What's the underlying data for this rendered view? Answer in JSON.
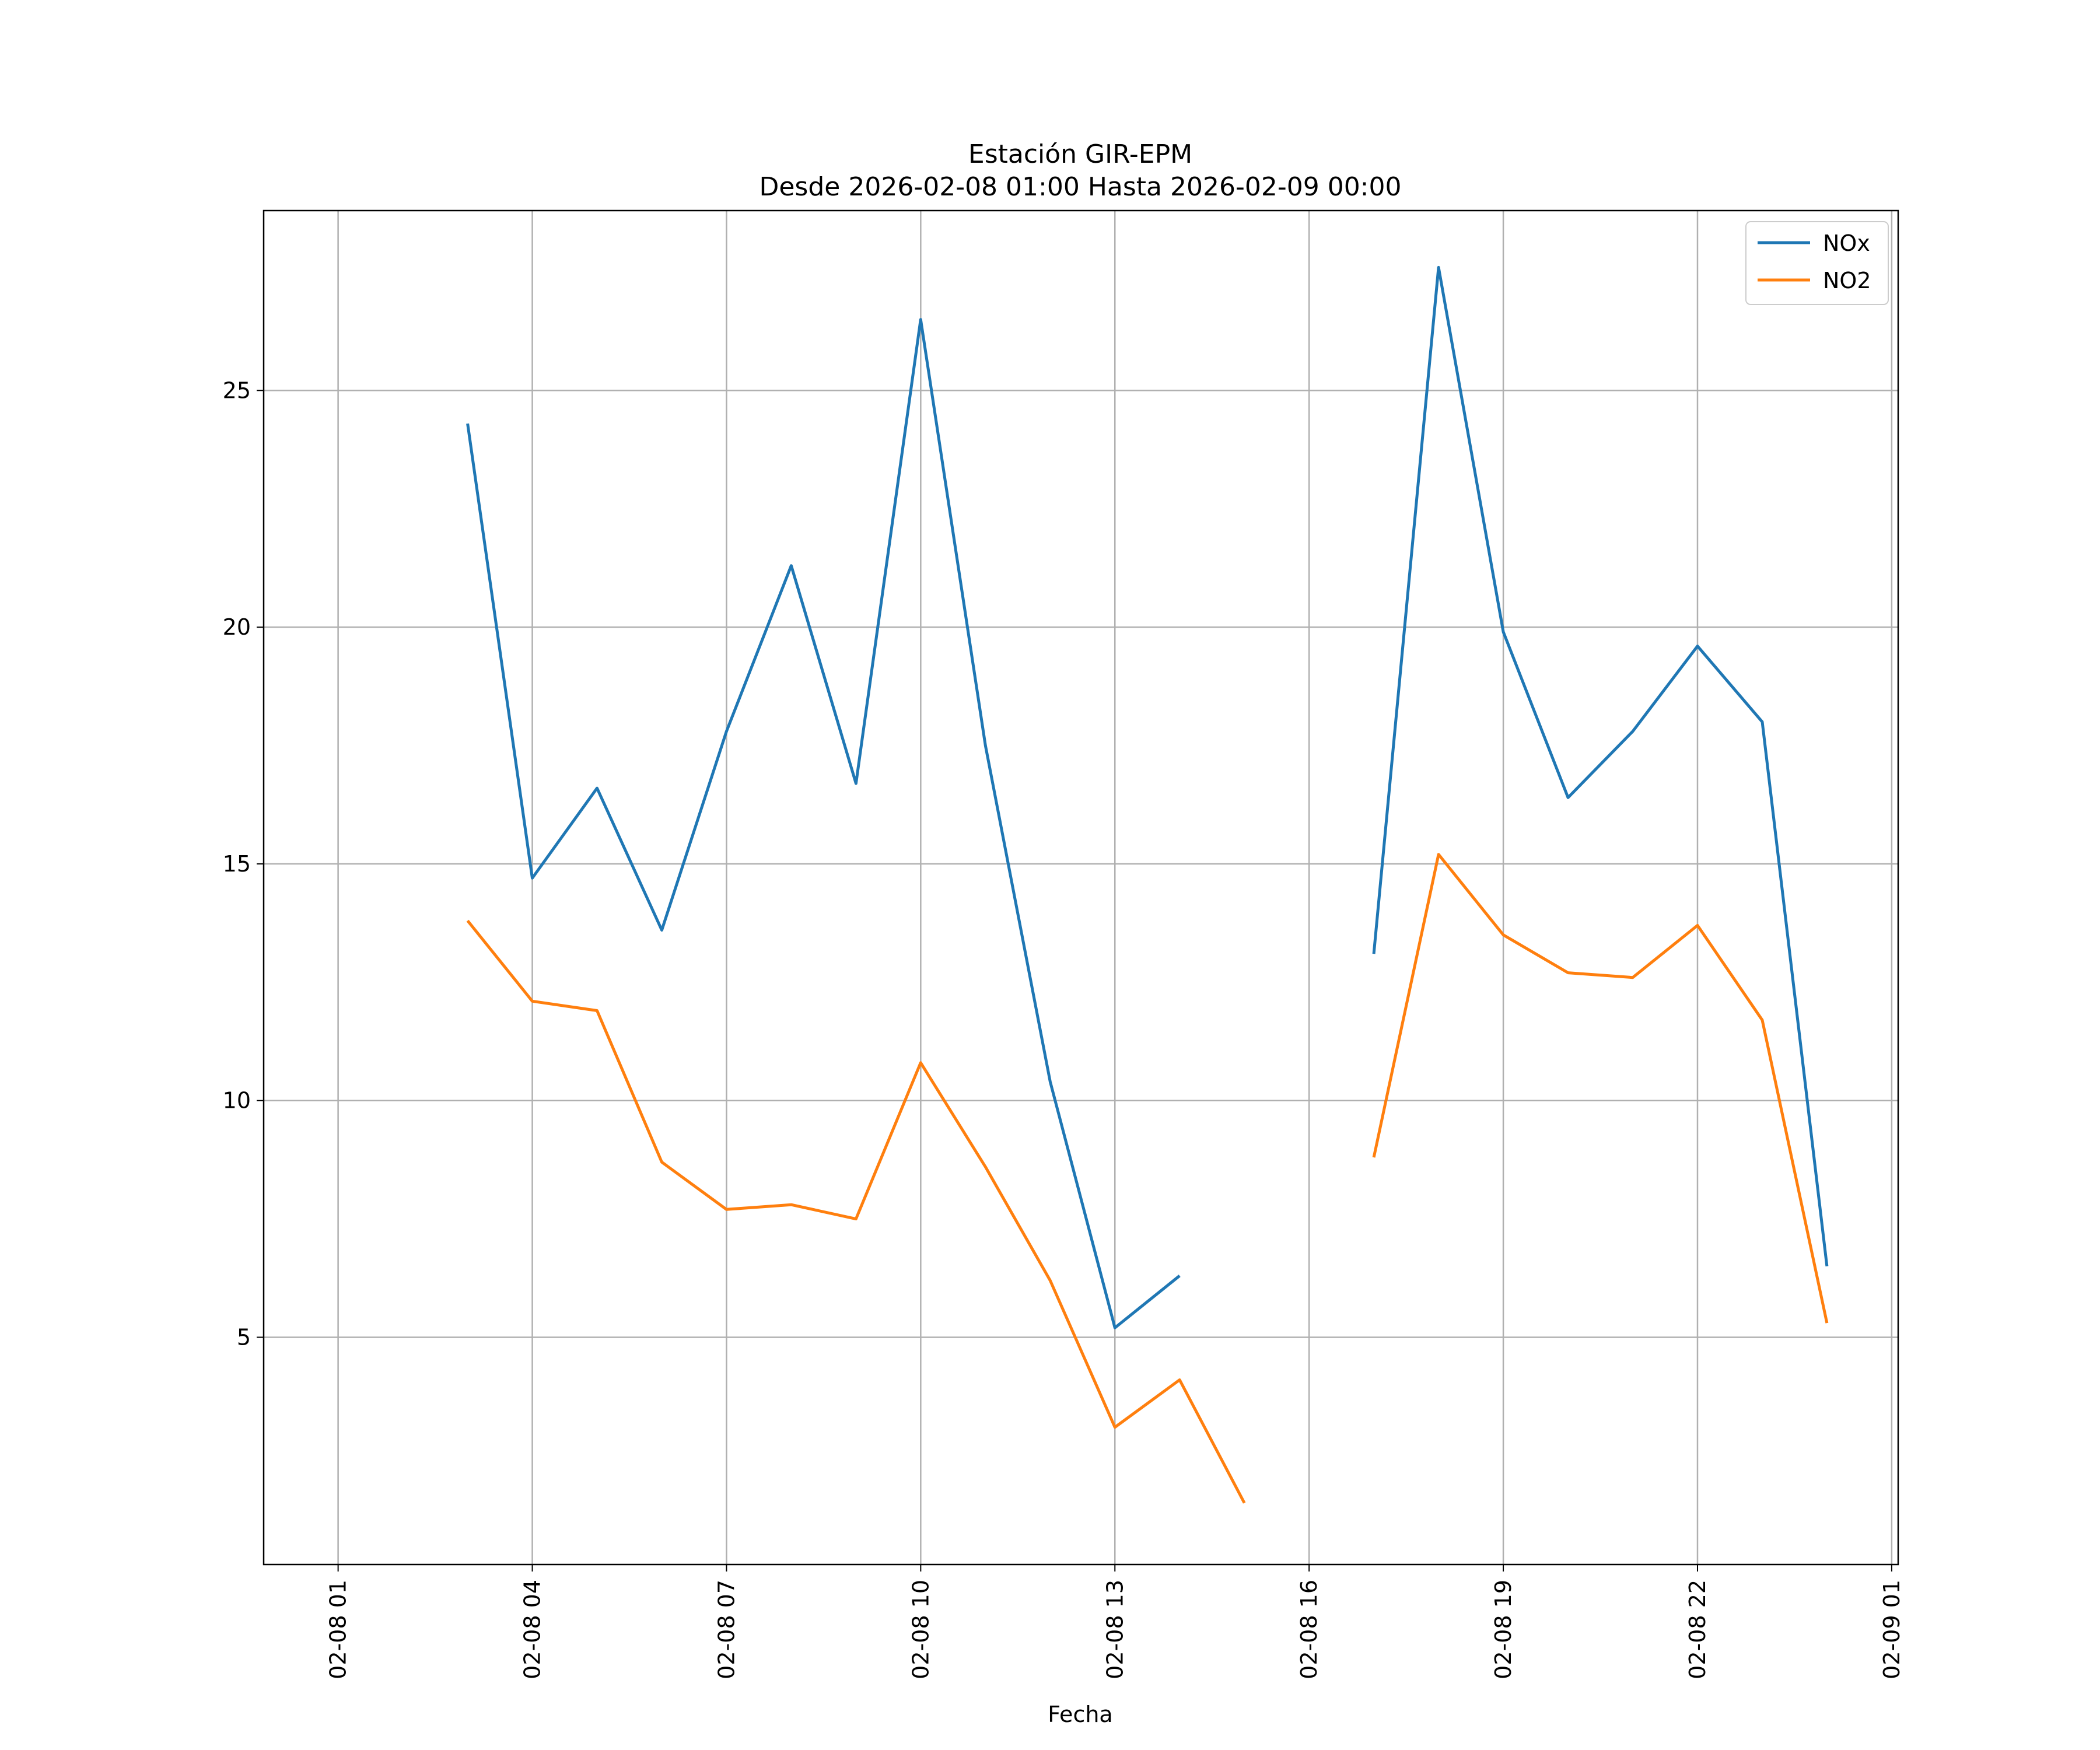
{
  "chart_data": {
    "type": "line",
    "title": "Estación GIR-EPM",
    "subtitle": "Desde 2026-02-08 01:00 Hasta 2026-02-09 00:00",
    "xlabel": "Fecha",
    "ylabel": "",
    "x_hours": [
      3,
      4,
      5,
      6,
      7,
      8,
      9,
      10,
      11,
      12,
      13,
      14,
      15,
      16,
      17,
      18,
      19,
      20,
      21,
      22,
      23,
      24
    ],
    "x_tick_hours": [
      1,
      4,
      7,
      10,
      13,
      16,
      19,
      22,
      25
    ],
    "x_tick_labels": [
      "02-08 01",
      "02-08 04",
      "02-08 07",
      "02-08 10",
      "02-08 13",
      "02-08 16",
      "02-08 19",
      "02-08 22",
      "02-09 01"
    ],
    "xlim": [
      -0.15,
      25.1
    ],
    "y_ticks": [
      5,
      10,
      15,
      20,
      25
    ],
    "ylim": [
      0.2,
      28.8
    ],
    "grid": true,
    "legend_position": "top-right",
    "series": [
      {
        "name": "NOx",
        "color": "#1f77b4",
        "values": [
          24.3,
          14.7,
          16.6,
          13.6,
          17.8,
          21.3,
          16.7,
          26.5,
          17.5,
          10.4,
          5.2,
          6.3,
          null,
          null,
          13.1,
          27.6,
          19.9,
          16.4,
          17.8,
          19.6,
          18.0,
          6.5
        ]
      },
      {
        "name": "NO2",
        "color": "#ff7f0e",
        "values": [
          13.8,
          12.1,
          11.9,
          8.7,
          7.7,
          7.8,
          7.5,
          10.8,
          8.6,
          6.2,
          3.1,
          4.1,
          1.5,
          null,
          8.8,
          15.2,
          13.5,
          12.7,
          12.6,
          13.7,
          11.7,
          5.3
        ]
      }
    ]
  }
}
